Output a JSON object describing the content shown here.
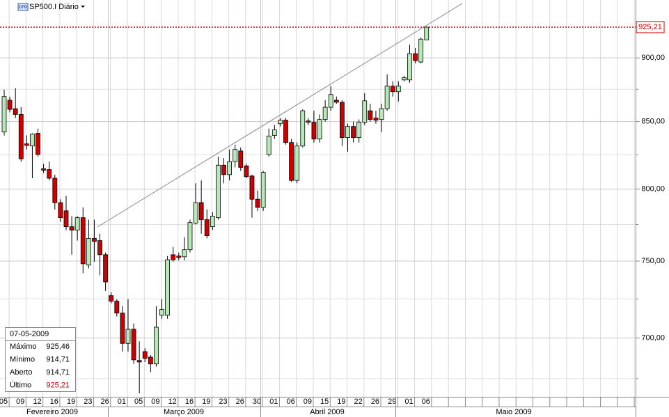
{
  "chart_data": {
    "type": "candlestick",
    "title": "SP500.I Diário",
    "badge": "CFD",
    "log_scale": true,
    "grid": true,
    "up_color": "#b8e8b8",
    "down_color": "#cc0000",
    "categories": [
      "05",
      null,
      null,
      "09",
      null,
      null,
      "12",
      null,
      null,
      "16",
      null,
      null,
      "19",
      null,
      null,
      "23",
      null,
      null,
      "26",
      null,
      null,
      "01",
      null,
      null,
      "05",
      null,
      null,
      "09",
      null,
      null,
      "12",
      null,
      null,
      "16",
      null,
      null,
      "19",
      null,
      null,
      "23",
      null,
      null,
      "26",
      null,
      null,
      "30",
      null,
      null,
      "01",
      null,
      null,
      "06",
      null,
      null,
      "09",
      null,
      null,
      "15",
      null,
      null,
      "19",
      null,
      null,
      "22",
      null,
      null,
      "26",
      null,
      null,
      "29",
      null,
      null,
      "01",
      null,
      null,
      "06"
    ],
    "open": [
      842.1,
      866.5,
      859.9,
      855.5,
      833.2,
      831.6,
      841.1,
      814.8,
      814.2,
      807.9,
      790.4,
      784.6,
      773.5,
      771.1,
      779.8,
      747.3,
      765.4,
      763.9,
      754.3,
      727.1,
      723.5,
      715.8,
      696.6,
      705.5,
      686.0,
      691.5,
      688.1,
      683.9,
      714.4,
      714.4,
      754.3,
      753.4,
      752.9,
      757.7,
      776.0,
      790.4,
      778.4,
      773.5,
      779.8,
      817.4,
      810.5,
      820.0,
      827.9,
      816.9,
      809.5,
      792.8,
      787.0,
      825.3,
      839.5,
      848.4,
      851.1,
      834.2,
      806.3,
      831.6,
      850.5,
      849.5,
      836.8,
      851.6,
      861.0,
      866.5,
      864.9,
      837.9,
      846.3,
      837.9,
      849.5,
      858.3,
      852.7,
      851.6,
      859.9,
      877.5,
      873.1,
      882.4,
      882.4,
      903.4,
      896.7,
      914.71
    ],
    "high": [
      874.7,
      869.3,
      875.8,
      861.0,
      839.5,
      841.1,
      844.7,
      818.4,
      820.0,
      810.5,
      792.8,
      795.2,
      780.8,
      780.8,
      787.0,
      778.4,
      778.4,
      768.7,
      755.8,
      729.3,
      724.8,
      720.3,
      724.8,
      709.1,
      697.9,
      693.6,
      689.4,
      720.3,
      724.8,
      753.4,
      759.6,
      755.8,
      766.3,
      778.4,
      804.2,
      806.3,
      785.6,
      783.6,
      823.7,
      822.6,
      829.0,
      832.6,
      830.5,
      818.4,
      810.5,
      799.0,
      813.2,
      844.7,
      847.4,
      852.7,
      852.7,
      836.8,
      834.2,
      859.4,
      852.7,
      858.3,
      855.5,
      866.5,
      877.5,
      869.3,
      866.5,
      848.4,
      850.0,
      851.6,
      872.0,
      863.8,
      858.3,
      863.8,
      886.8,
      881.3,
      881.3,
      885.7,
      910.8,
      908.0,
      916.5,
      925.46
    ],
    "low": [
      839.5,
      857.1,
      852.7,
      820.0,
      829.0,
      807.9,
      823.7,
      811.6,
      806.3,
      785.6,
      776.9,
      771.1,
      754.3,
      763.9,
      741.9,
      745.1,
      749.6,
      740.6,
      730.2,
      722.1,
      713.6,
      691.5,
      691.5,
      683.9,
      666.0,
      685.1,
      678.8,
      682.2,
      712.2,
      712.2,
      749.6,
      750.5,
      750.5,
      755.8,
      775.0,
      768.7,
      765.4,
      771.1,
      778.4,
      804.2,
      806.3,
      815.8,
      813.2,
      807.9,
      779.8,
      784.6,
      784.6,
      823.7,
      836.8,
      846.3,
      832.6,
      805.3,
      804.2,
      830.5,
      847.4,
      834.2,
      834.2,
      850.0,
      858.3,
      863.8,
      831.6,
      827.4,
      834.2,
      834.2,
      847.4,
      850.0,
      848.4,
      842.1,
      858.3,
      869.3,
      865.4,
      881.3,
      880.2,
      895.6,
      895.6,
      914.71
    ],
    "close": [
      869.3,
      859.4,
      855.5,
      822.1,
      832.1,
      840.5,
      825.3,
      813.7,
      807.9,
      790.4,
      779.8,
      773.5,
      771.1,
      779.8,
      748.2,
      765.4,
      763.4,
      754.3,
      736.1,
      723.5,
      715.8,
      696.6,
      705.5,
      686.4,
      685.1,
      687.3,
      683.9,
      706.8,
      718.1,
      750.9,
      750.9,
      752.4,
      757.7,
      776.4,
      790.4,
      778.4,
      767.3,
      780.8,
      817.4,
      810.5,
      820.0,
      829.0,
      815.8,
      809.0,
      792.8,
      787.0,
      812.1,
      839.0,
      843.7,
      851.1,
      834.2,
      806.3,
      831.6,
      858.3,
      849.5,
      836.8,
      851.6,
      861.0,
      870.9,
      864.9,
      837.9,
      846.3,
      837.9,
      849.5,
      866.0,
      851.6,
      851.1,
      859.9,
      877.5,
      873.1,
      877.5,
      884.1,
      903.4,
      897.8,
      915.3,
      925.21
    ],
    "ylim": [
      664,
      948
    ],
    "yticks": [
      {
        "value": 700,
        "label": "700,00"
      },
      {
        "value": 750,
        "label": "750,00"
      },
      {
        "value": 800,
        "label": "800,00"
      },
      {
        "value": 850,
        "label": "850,00"
      },
      {
        "value": 900,
        "label": "900,00"
      }
    ],
    "yticks_minor": [
      675,
      725,
      775,
      825,
      875
    ],
    "last_price": {
      "value": 925.21,
      "label": "925,21"
    },
    "months": [
      "Fevereiro 2009",
      "Março 2009",
      "Abril 2009",
      "Maio 2009"
    ],
    "info": {
      "date": "07-05-2009",
      "rows": [
        {
          "name": "Máximo",
          "value": {
            "value": 925.46,
            "label": "925,46"
          }
        },
        {
          "name": "Mínimo",
          "value": {
            "value": 914.71,
            "label": "914,71"
          }
        },
        {
          "name": "Aberto",
          "value": {
            "value": 914.71,
            "label": "914,71"
          }
        },
        {
          "name": "Último",
          "value": {
            "value": 925.21,
            "label": "925,21"
          }
        }
      ]
    }
  }
}
